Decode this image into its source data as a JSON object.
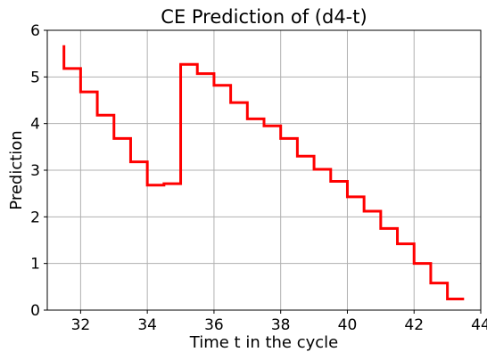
{
  "chart_data": {
    "type": "line",
    "title": "CE Prediction of (d4-t)",
    "xlabel": "Time t in the cycle",
    "ylabel": "Prediction",
    "xlim": [
      31.0,
      44.0
    ],
    "ylim": [
      0,
      6
    ],
    "x_ticks": [
      32,
      34,
      36,
      38,
      40,
      42,
      44
    ],
    "y_ticks": [
      0,
      1,
      2,
      3,
      4,
      5,
      6
    ],
    "grid": true,
    "step": "post",
    "series": [
      {
        "color": "#ff0000",
        "x": [
          31.5,
          31.5,
          32.0,
          32.5,
          33.0,
          33.5,
          34.0,
          34.5,
          35.0,
          35.5,
          36.0,
          36.5,
          37.0,
          37.5,
          38.0,
          38.5,
          39.0,
          39.5,
          40.0,
          40.5,
          41.0,
          41.5,
          42.0,
          42.5,
          43.0,
          43.5
        ],
        "y": [
          5.68,
          5.18,
          4.68,
          4.18,
          3.68,
          3.18,
          2.68,
          2.71,
          5.27,
          5.07,
          4.82,
          4.45,
          4.1,
          3.95,
          3.68,
          3.3,
          3.02,
          2.76,
          2.43,
          2.12,
          1.75,
          1.42,
          1.0,
          0.58,
          0.24,
          0.24
        ]
      }
    ]
  }
}
